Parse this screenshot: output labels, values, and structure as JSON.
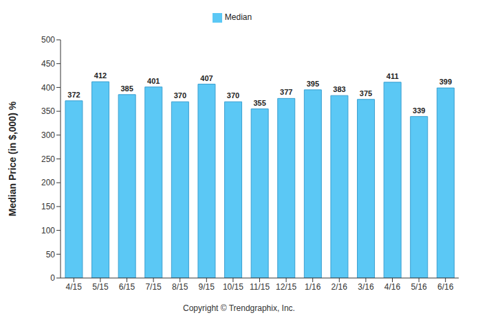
{
  "chart_data": {
    "type": "bar",
    "y_label": "Median Price (in $,000) %",
    "categories": [
      "4/15",
      "5/15",
      "6/15",
      "7/15",
      "8/15",
      "9/15",
      "10/15",
      "11/15",
      "12/15",
      "1/16",
      "2/16",
      "3/16",
      "4/16",
      "5/16",
      "6/16"
    ],
    "series": [
      {
        "name": "Median",
        "color": "#5bc8f5",
        "values": [
          372,
          412,
          385,
          401,
          370,
          407,
          370,
          355,
          377,
          395,
          383,
          375,
          411,
          339,
          399
        ]
      }
    ],
    "ylim": [
      0,
      500
    ],
    "yticks": [
      0,
      50,
      100,
      150,
      200,
      250,
      300,
      350,
      400,
      450,
      500
    ],
    "grid": false,
    "legend": "top",
    "data_labels": true,
    "annotation": "Copyright © Trendgraphix, Inc."
  }
}
